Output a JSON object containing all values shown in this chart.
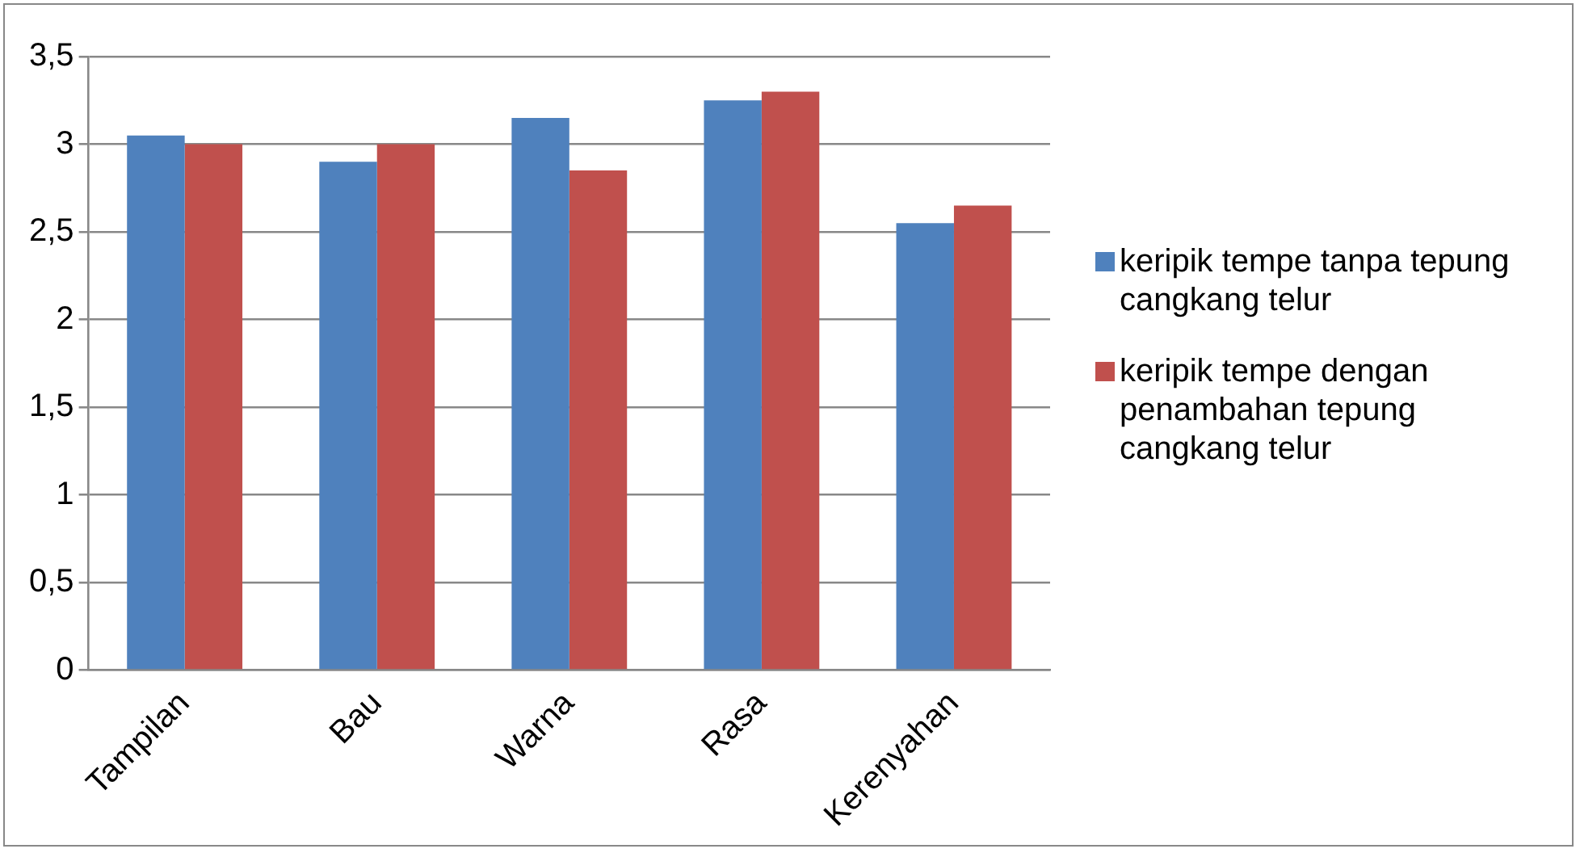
{
  "chart_data": {
    "type": "bar",
    "categories": [
      "Tampilan",
      "Bau",
      "Warna",
      "Rasa",
      "Kerenyahan"
    ],
    "series": [
      {
        "name": "keripik tempe tanpa tepung cangkang telur",
        "color": "#4f81bd",
        "values": [
          3.05,
          2.9,
          3.15,
          3.25,
          2.55
        ]
      },
      {
        "name": "keripik tempe dengan penambahan tepung cangkang telur",
        "color": "#c0504d",
        "values": [
          3.0,
          3.0,
          2.85,
          3.3,
          2.65
        ]
      }
    ],
    "ylim": [
      0,
      3.5
    ],
    "yticks": [
      {
        "value": 0,
        "label": "0"
      },
      {
        "value": 0.5,
        "label": "0,5"
      },
      {
        "value": 1,
        "label": "1"
      },
      {
        "value": 1.5,
        "label": "1,5"
      },
      {
        "value": 2,
        "label": "2"
      },
      {
        "value": 2.5,
        "label": "2,5"
      },
      {
        "value": 3,
        "label": "3"
      },
      {
        "value": 3.5,
        "label": "3,5"
      }
    ],
    "grid": "y",
    "legend": "right"
  }
}
